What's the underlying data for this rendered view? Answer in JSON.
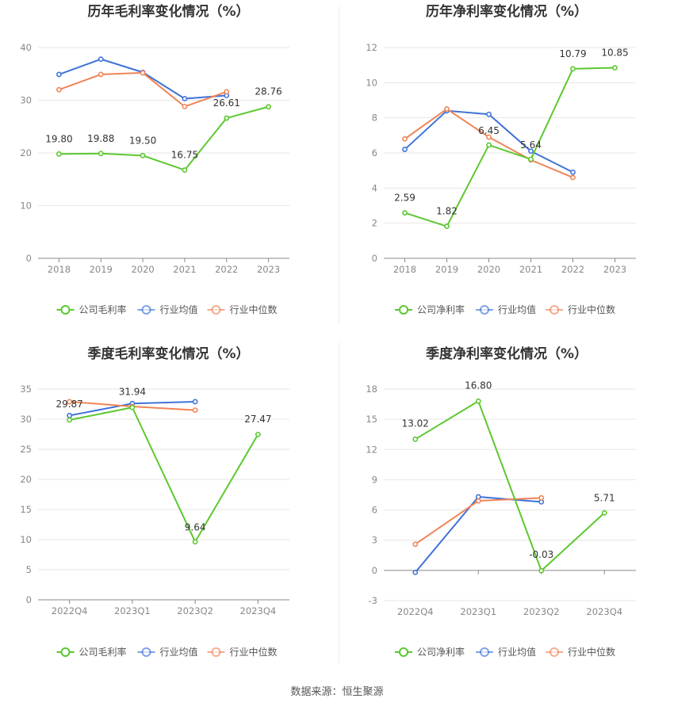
{
  "source_text": "数据来源：恒生聚源",
  "colors": {
    "company": "#5cc830",
    "industry_avg": "#3f72d8",
    "industry_median": "#f08457"
  },
  "chart_data": [
    {
      "type": "line",
      "title": "历年毛利率变化情况（%）",
      "categories": [
        "2018",
        "2019",
        "2020",
        "2021",
        "2022",
        "2023"
      ],
      "ylim": [
        0,
        40
      ],
      "yticks": [
        0,
        10,
        20,
        30,
        40
      ],
      "legend": [
        "公司毛利率",
        "行业均值",
        "行业中位数"
      ],
      "series": [
        {
          "name": "公司毛利率",
          "values": [
            19.8,
            19.88,
            19.5,
            16.75,
            26.61,
            28.76
          ],
          "labels": [
            "19.80",
            "19.88",
            "19.50",
            "16.75",
            "26.61",
            "28.76"
          ]
        },
        {
          "name": "行业均值",
          "values": [
            34.9,
            37.8,
            35.3,
            30.3,
            30.9,
            null
          ]
        },
        {
          "name": "行业中位数",
          "values": [
            32.0,
            34.9,
            35.2,
            28.8,
            31.6,
            null
          ]
        }
      ]
    },
    {
      "type": "line",
      "title": "历年净利率变化情况（%）",
      "categories": [
        "2018",
        "2019",
        "2020",
        "2021",
        "2022",
        "2023"
      ],
      "ylim": [
        0,
        12
      ],
      "yticks": [
        0,
        2,
        4,
        6,
        8,
        10,
        12
      ],
      "legend": [
        "公司净利率",
        "行业均值",
        "行业中位数"
      ],
      "series": [
        {
          "name": "公司净利率",
          "values": [
            2.59,
            1.82,
            6.45,
            5.64,
            10.79,
            10.85
          ],
          "labels": [
            "2.59",
            "1.82",
            "6.45",
            "5.64",
            "10.79",
            "10.85"
          ]
        },
        {
          "name": "行业均值",
          "values": [
            6.2,
            8.4,
            8.2,
            6.1,
            4.9,
            null
          ]
        },
        {
          "name": "行业中位数",
          "values": [
            6.8,
            8.5,
            6.9,
            5.6,
            4.6,
            null
          ]
        }
      ]
    },
    {
      "type": "line",
      "title": "季度毛利率变化情况（%）",
      "categories": [
        "2022Q4",
        "2023Q1",
        "2023Q2",
        "2023Q4"
      ],
      "ylim": [
        0,
        35
      ],
      "yticks": [
        0,
        5,
        10,
        15,
        20,
        25,
        30,
        35
      ],
      "legend": [
        "公司毛利率",
        "行业均值",
        "行业中位数"
      ],
      "series": [
        {
          "name": "公司毛利率",
          "values": [
            29.87,
            31.94,
            9.64,
            27.47
          ],
          "labels": [
            "29.87",
            "31.94",
            "9.64",
            "27.47"
          ]
        },
        {
          "name": "行业均值",
          "values": [
            30.6,
            32.6,
            32.9,
            null
          ]
        },
        {
          "name": "行业中位数",
          "values": [
            32.9,
            32.1,
            31.5,
            null
          ]
        }
      ]
    },
    {
      "type": "line",
      "title": "季度净利率变化情况（%）",
      "categories": [
        "2022Q4",
        "2023Q1",
        "2023Q2",
        "2023Q4"
      ],
      "ylim": [
        -3,
        18
      ],
      "yticks": [
        -3,
        0,
        3,
        6,
        9,
        12,
        15,
        18
      ],
      "legend": [
        "公司净利率",
        "行业均值",
        "行业中位数"
      ],
      "series": [
        {
          "name": "公司净利率",
          "values": [
            13.02,
            16.8,
            -0.03,
            5.71
          ],
          "labels": [
            "13.02",
            "16.80",
            "-0.03",
            "5.71"
          ]
        },
        {
          "name": "行业均值",
          "values": [
            -0.2,
            7.3,
            6.8,
            null
          ]
        },
        {
          "name": "行业中位数",
          "values": [
            2.6,
            6.9,
            7.2,
            null
          ]
        }
      ]
    }
  ]
}
